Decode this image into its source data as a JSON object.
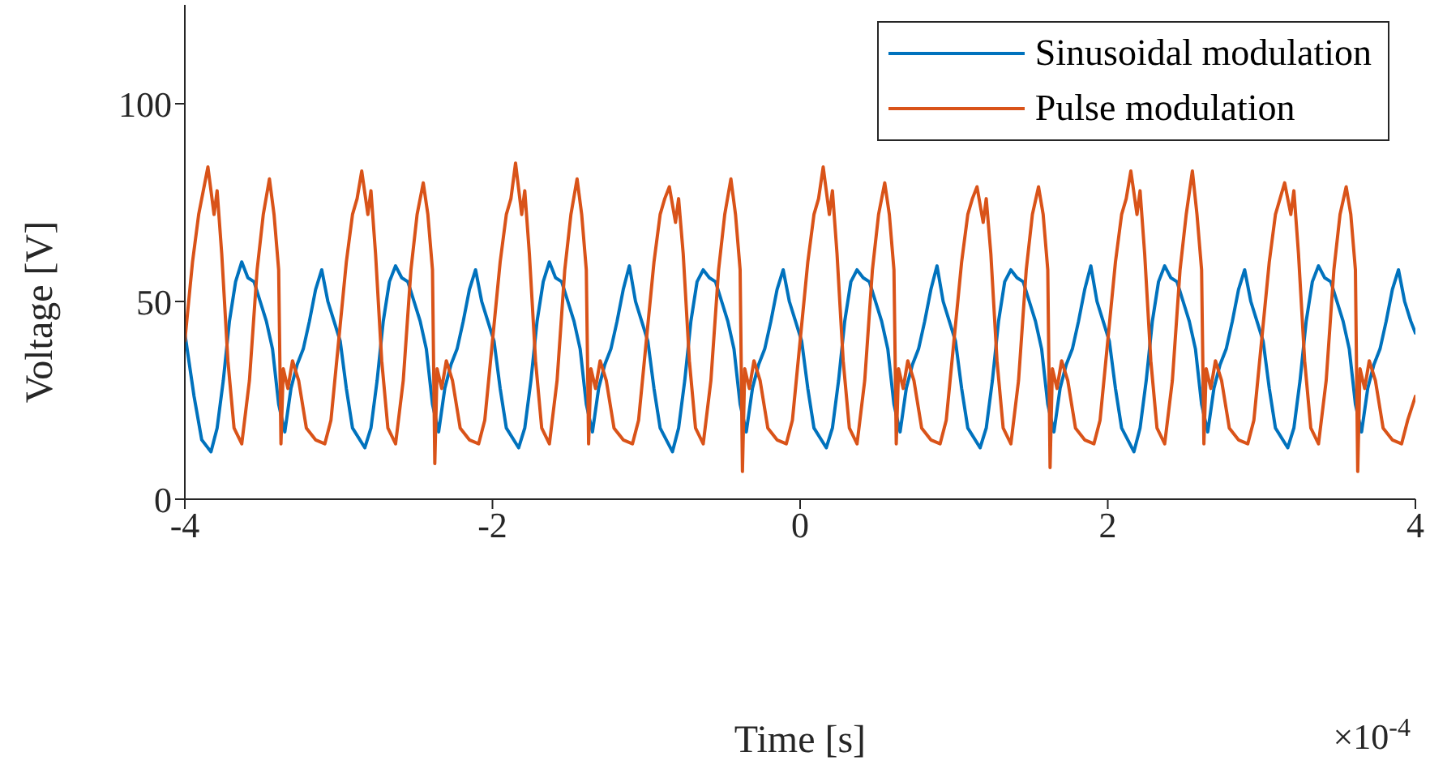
{
  "chart_data": {
    "type": "line",
    "xlabel": "Time [s]",
    "ylabel": "Voltage [V]",
    "annotations": [
      "×10$^{-4}$"
    ],
    "xlim": [
      -4,
      4
    ],
    "xticks": [
      -4,
      -2,
      0,
      2,
      4
    ],
    "ylim": [
      0,
      125
    ],
    "yticks": [
      0,
      50,
      100
    ],
    "grid": false,
    "legend": "top right",
    "series": [
      {
        "name": "Sinusoidal modulation",
        "color": "#0072bd",
        "x": [
          -4,
          -3.94,
          -3.89,
          -3.83,
          -3.79,
          -3.75,
          -3.71,
          -3.67,
          -3.63,
          -3.59,
          -3.55,
          -3.51,
          -3.47,
          -3.43,
          -3.39,
          -3.35,
          -3.31,
          -3.27,
          -3.23,
          -3.19,
          -3.15,
          -3.11,
          -3.07,
          -3.03,
          -2.99,
          -2.95,
          -2.91,
          -2.83,
          -2.79,
          -2.75,
          -2.71,
          -2.67,
          -2.63,
          -2.59,
          -2.55,
          -2.51,
          -2.47,
          -2.43,
          -2.39,
          -2.35,
          -2.31,
          -2.27,
          -2.23,
          -2.19,
          -2.15,
          -2.11,
          -2.07,
          -2.03,
          -1.99,
          -1.95,
          -1.91,
          -1.83,
          -1.79,
          -1.75,
          -1.71,
          -1.67,
          -1.63,
          -1.59,
          -1.55,
          -1.51,
          -1.47,
          -1.43,
          -1.39,
          -1.35,
          -1.31,
          -1.27,
          -1.23,
          -1.19,
          -1.15,
          -1.11,
          -1.07,
          -1.03,
          -0.99,
          -0.95,
          -0.91,
          -0.83,
          -0.79,
          -0.75,
          -0.71,
          -0.67,
          -0.63,
          -0.59,
          -0.55,
          -0.51,
          -0.47,
          -0.43,
          -0.39,
          -0.35,
          -0.31,
          -0.27,
          -0.23,
          -0.19,
          -0.15,
          -0.11,
          -0.07,
          -0.03,
          0.01,
          0.05,
          0.09,
          0.17,
          0.21,
          0.25,
          0.29,
          0.33,
          0.37,
          0.41,
          0.45,
          0.49,
          0.53,
          0.57,
          0.61,
          0.65,
          0.69,
          0.73,
          0.77,
          0.81,
          0.85,
          0.89,
          0.93,
          0.97,
          1.01,
          1.05,
          1.09,
          1.17,
          1.21,
          1.25,
          1.29,
          1.33,
          1.37,
          1.41,
          1.45,
          1.49,
          1.53,
          1.57,
          1.61,
          1.65,
          1.69,
          1.73,
          1.77,
          1.81,
          1.85,
          1.89,
          1.93,
          1.97,
          2.01,
          2.05,
          2.09,
          2.17,
          2.21,
          2.25,
          2.29,
          2.33,
          2.37,
          2.41,
          2.45,
          2.49,
          2.53,
          2.57,
          2.61,
          2.65,
          2.69,
          2.73,
          2.77,
          2.81,
          2.85,
          2.89,
          2.93,
          2.97,
          3.01,
          3.05,
          3.09,
          3.17,
          3.21,
          3.25,
          3.29,
          3.33,
          3.37,
          3.41,
          3.45,
          3.49,
          3.53,
          3.57,
          3.61,
          3.65,
          3.69,
          3.73,
          3.77,
          3.81,
          3.85,
          3.89,
          3.93,
          3.97,
          4
        ],
        "values": [
          42,
          26,
          15,
          12,
          18,
          30,
          45,
          55,
          60,
          56,
          55,
          50,
          45,
          38,
          24,
          17,
          28,
          34,
          38,
          45,
          53,
          58,
          50,
          45,
          40,
          28,
          18,
          13,
          18,
          30,
          45,
          55,
          59,
          56,
          55,
          50,
          45,
          38,
          24,
          17,
          28,
          34,
          38,
          45,
          53,
          58,
          50,
          45,
          40,
          28,
          18,
          13,
          18,
          30,
          45,
          55,
          60,
          56,
          55,
          50,
          45,
          38,
          24,
          17,
          28,
          34,
          38,
          45,
          53,
          59,
          50,
          45,
          40,
          28,
          18,
          12,
          18,
          30,
          45,
          55,
          58,
          56,
          55,
          50,
          45,
          38,
          24,
          17,
          28,
          34,
          38,
          45,
          53,
          58,
          50,
          45,
          40,
          28,
          18,
          13,
          18,
          30,
          45,
          55,
          58,
          56,
          55,
          50,
          45,
          38,
          24,
          17,
          28,
          34,
          38,
          45,
          53,
          59,
          50,
          45,
          40,
          28,
          18,
          13,
          18,
          30,
          45,
          55,
          58,
          56,
          55,
          50,
          45,
          38,
          24,
          17,
          28,
          34,
          38,
          45,
          53,
          59,
          50,
          45,
          40,
          28,
          18,
          12,
          18,
          30,
          45,
          55,
          59,
          56,
          55,
          50,
          45,
          38,
          24,
          17,
          28,
          34,
          38,
          45,
          53,
          58,
          50,
          45,
          40,
          28,
          18,
          13,
          18,
          30,
          45,
          55,
          59,
          56,
          55,
          50,
          45,
          38,
          24,
          17,
          28,
          34,
          38,
          45,
          53,
          58,
          50,
          45,
          42
        ]
      },
      {
        "name": "Pulse modulation",
        "color": "#d95319",
        "x": [
          -4,
          -3.95,
          -3.91,
          -3.85,
          -3.81,
          -3.79,
          -3.76,
          -3.72,
          -3.68,
          -3.63,
          -3.58,
          -3.53,
          -3.49,
          -3.45,
          -3.42,
          -3.39,
          -3.375,
          -3.36,
          -3.33,
          -3.3,
          -3.26,
          -3.21,
          -3.15,
          -3.09,
          -3.05,
          -3,
          -2.95,
          -2.91,
          -2.88,
          -2.85,
          -2.81,
          -2.79,
          -2.76,
          -2.72,
          -2.68,
          -2.63,
          -2.58,
          -2.53,
          -2.49,
          -2.45,
          -2.42,
          -2.39,
          -2.375,
          -2.36,
          -2.33,
          -2.3,
          -2.26,
          -2.21,
          -2.15,
          -2.09,
          -2.05,
          -2,
          -1.95,
          -1.91,
          -1.88,
          -1.85,
          -1.81,
          -1.79,
          -1.76,
          -1.72,
          -1.68,
          -1.63,
          -1.58,
          -1.53,
          -1.49,
          -1.45,
          -1.42,
          -1.39,
          -1.375,
          -1.36,
          -1.33,
          -1.3,
          -1.26,
          -1.21,
          -1.15,
          -1.09,
          -1.05,
          -1,
          -0.95,
          -0.91,
          -0.88,
          -0.85,
          -0.81,
          -0.79,
          -0.76,
          -0.72,
          -0.68,
          -0.63,
          -0.58,
          -0.53,
          -0.49,
          -0.45,
          -0.42,
          -0.39,
          -0.375,
          -0.36,
          -0.33,
          -0.3,
          -0.26,
          -0.21,
          -0.15,
          -0.09,
          -0.05,
          0,
          0.05,
          0.09,
          0.12,
          0.15,
          0.19,
          0.21,
          0.24,
          0.28,
          0.32,
          0.37,
          0.42,
          0.47,
          0.51,
          0.55,
          0.58,
          0.61,
          0.625,
          0.64,
          0.67,
          0.7,
          0.74,
          0.79,
          0.85,
          0.91,
          0.95,
          1,
          1.05,
          1.09,
          1.12,
          1.15,
          1.19,
          1.21,
          1.24,
          1.28,
          1.32,
          1.37,
          1.42,
          1.47,
          1.51,
          1.55,
          1.58,
          1.61,
          1.625,
          1.64,
          1.67,
          1.7,
          1.74,
          1.79,
          1.85,
          1.91,
          1.95,
          2,
          2.05,
          2.09,
          2.12,
          2.15,
          2.19,
          2.21,
          2.24,
          2.28,
          2.32,
          2.37,
          2.42,
          2.47,
          2.51,
          2.55,
          2.58,
          2.61,
          2.625,
          2.64,
          2.67,
          2.7,
          2.74,
          2.79,
          2.85,
          2.91,
          2.95,
          3,
          3.05,
          3.09,
          3.12,
          3.15,
          3.19,
          3.21,
          3.24,
          3.28,
          3.32,
          3.37,
          3.42,
          3.47,
          3.51,
          3.55,
          3.58,
          3.61,
          3.625,
          3.64,
          3.67,
          3.7,
          3.74,
          3.79,
          3.85,
          3.91,
          3.95,
          4
        ],
        "values": [
          40,
          60,
          72,
          84,
          72,
          78,
          62,
          35,
          18,
          14,
          30,
          58,
          72,
          81,
          72,
          58,
          14,
          33,
          28,
          35,
          30,
          18,
          15,
          14,
          20,
          40,
          60,
          72,
          76,
          83,
          72,
          78,
          62,
          35,
          18,
          14,
          30,
          58,
          72,
          80,
          72,
          58,
          9,
          33,
          28,
          35,
          30,
          18,
          15,
          14,
          20,
          40,
          60,
          72,
          76,
          85,
          72,
          78,
          62,
          35,
          18,
          14,
          30,
          58,
          72,
          81,
          72,
          58,
          14,
          33,
          28,
          35,
          30,
          18,
          15,
          14,
          20,
          40,
          60,
          72,
          76,
          79,
          70,
          76,
          62,
          35,
          18,
          14,
          30,
          58,
          72,
          81,
          72,
          58,
          7,
          33,
          28,
          35,
          30,
          18,
          15,
          14,
          20,
          40,
          60,
          72,
          76,
          84,
          72,
          78,
          62,
          35,
          18,
          14,
          30,
          58,
          72,
          80,
          72,
          58,
          14,
          33,
          28,
          35,
          30,
          18,
          15,
          14,
          20,
          40,
          60,
          72,
          76,
          79,
          70,
          76,
          62,
          35,
          18,
          14,
          30,
          58,
          72,
          79,
          72,
          58,
          8,
          33,
          28,
          35,
          30,
          18,
          15,
          14,
          20,
          40,
          60,
          72,
          76,
          83,
          72,
          78,
          62,
          35,
          18,
          14,
          30,
          58,
          72,
          83,
          72,
          58,
          14,
          33,
          28,
          35,
          30,
          18,
          15,
          14,
          20,
          40,
          60,
          72,
          76,
          80,
          72,
          78,
          62,
          35,
          18,
          14,
          30,
          58,
          72,
          79,
          72,
          58,
          7,
          33,
          28,
          35,
          30,
          18,
          15,
          14,
          20,
          26
        ]
      }
    ]
  }
}
